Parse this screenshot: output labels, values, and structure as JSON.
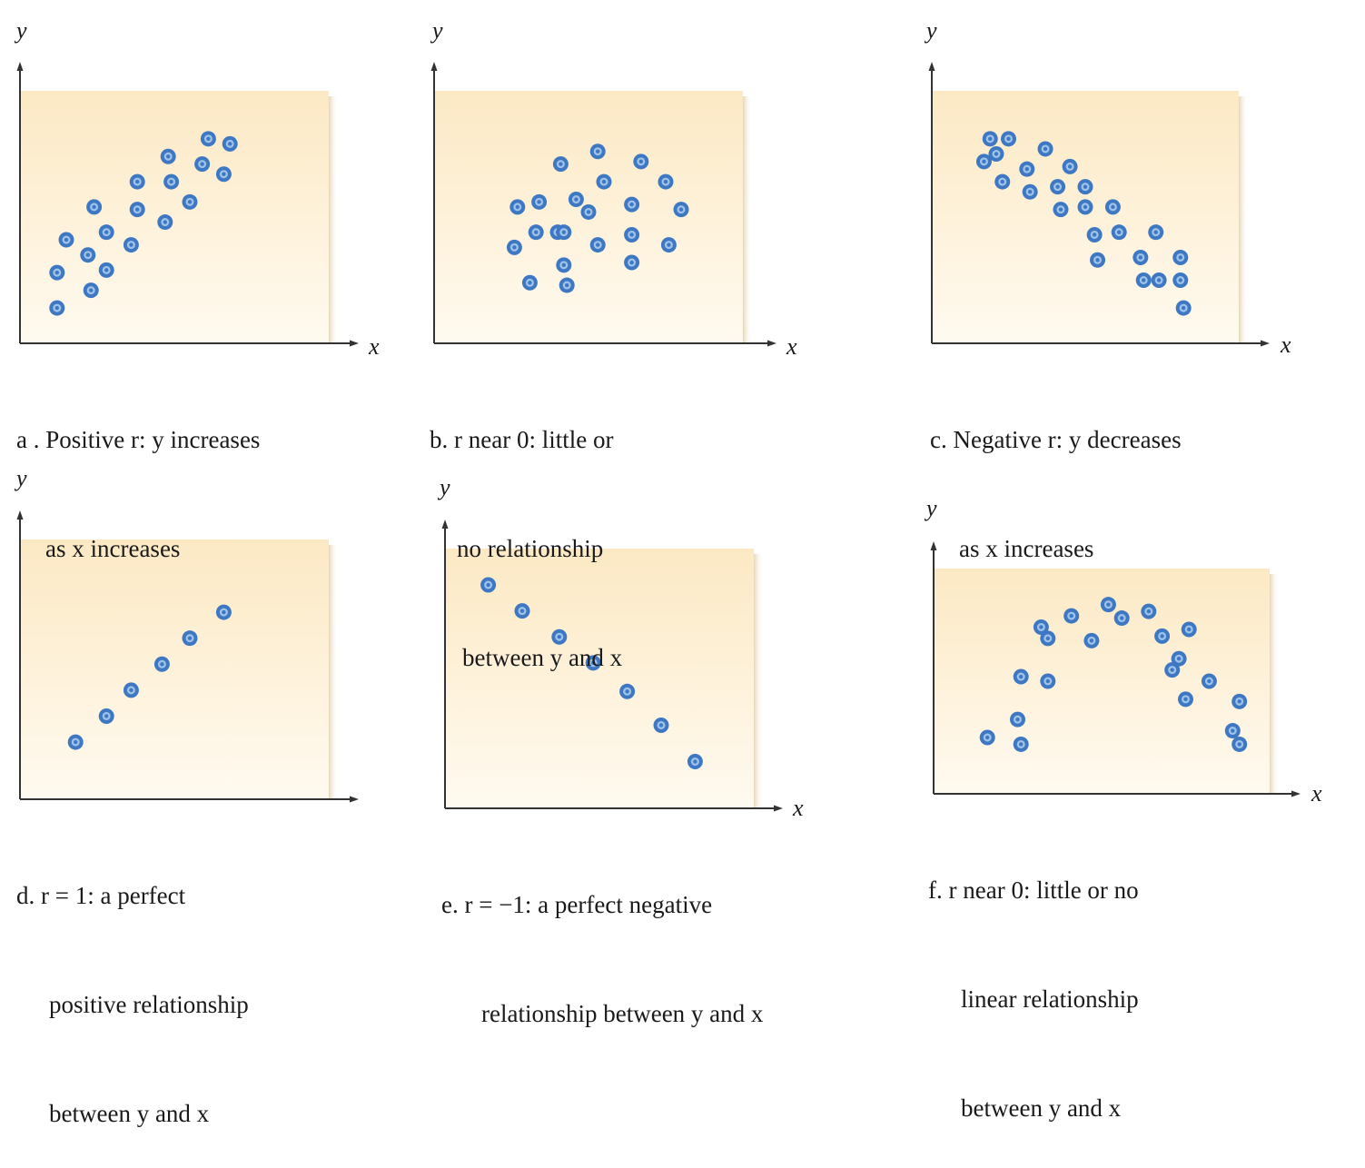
{
  "colors": {
    "panel_top": "#fce9c4",
    "panel_bottom": "#fffaf0",
    "point_fill": "#3f78c2",
    "point_ring": "#9ec3ea",
    "axis": "#333333"
  },
  "chart_data": [
    {
      "type": "scatter",
      "id": "a",
      "xlabel": "x",
      "ylabel": "y",
      "caption": [
        "a . Positive r: y increases",
        "as x increases"
      ],
      "points": [
        [
          0.12,
          0.14
        ],
        [
          0.12,
          0.28
        ],
        [
          0.15,
          0.41
        ],
        [
          0.22,
          0.35
        ],
        [
          0.23,
          0.21
        ],
        [
          0.24,
          0.54
        ],
        [
          0.28,
          0.29
        ],
        [
          0.28,
          0.44
        ],
        [
          0.36,
          0.39
        ],
        [
          0.38,
          0.64
        ],
        [
          0.38,
          0.53
        ],
        [
          0.47,
          0.48
        ],
        [
          0.48,
          0.74
        ],
        [
          0.49,
          0.64
        ],
        [
          0.55,
          0.56
        ],
        [
          0.59,
          0.71
        ],
        [
          0.61,
          0.81
        ],
        [
          0.66,
          0.67
        ],
        [
          0.68,
          0.79
        ]
      ]
    },
    {
      "type": "scatter",
      "id": "b",
      "xlabel": "x",
      "ylabel": "y",
      "caption": [
        "b. r near 0: little or",
        "no relationship",
        "between y and x"
      ],
      "points": [
        [
          0.26,
          0.38
        ],
        [
          0.27,
          0.54
        ],
        [
          0.31,
          0.24
        ],
        [
          0.33,
          0.44
        ],
        [
          0.34,
          0.56
        ],
        [
          0.4,
          0.44
        ],
        [
          0.41,
          0.71
        ],
        [
          0.42,
          0.31
        ],
        [
          0.42,
          0.44
        ],
        [
          0.43,
          0.23
        ],
        [
          0.46,
          0.57
        ],
        [
          0.5,
          0.52
        ],
        [
          0.53,
          0.76
        ],
        [
          0.53,
          0.39
        ],
        [
          0.55,
          0.64
        ],
        [
          0.64,
          0.32
        ],
        [
          0.64,
          0.55
        ],
        [
          0.64,
          0.43
        ],
        [
          0.67,
          0.72
        ],
        [
          0.75,
          0.64
        ],
        [
          0.76,
          0.39
        ],
        [
          0.8,
          0.53
        ]
      ]
    },
    {
      "type": "scatter",
      "id": "c",
      "xlabel": "x",
      "ylabel": "y",
      "caption": [
        "c. Negative r: y decreases",
        "as x increases"
      ],
      "points": [
        [
          0.17,
          0.72
        ],
        [
          0.19,
          0.81
        ],
        [
          0.21,
          0.75
        ],
        [
          0.23,
          0.64
        ],
        [
          0.25,
          0.81
        ],
        [
          0.31,
          0.69
        ],
        [
          0.32,
          0.6
        ],
        [
          0.37,
          0.77
        ],
        [
          0.41,
          0.62
        ],
        [
          0.42,
          0.53
        ],
        [
          0.45,
          0.7
        ],
        [
          0.5,
          0.62
        ],
        [
          0.5,
          0.54
        ],
        [
          0.53,
          0.43
        ],
        [
          0.54,
          0.33
        ],
        [
          0.59,
          0.54
        ],
        [
          0.61,
          0.44
        ],
        [
          0.68,
          0.34
        ],
        [
          0.69,
          0.25
        ],
        [
          0.73,
          0.44
        ],
        [
          0.74,
          0.25
        ],
        [
          0.81,
          0.34
        ],
        [
          0.81,
          0.25
        ],
        [
          0.82,
          0.14
        ]
      ]
    },
    {
      "type": "scatter",
      "id": "d",
      "xlabel": "",
      "ylabel": "y",
      "caption": [
        "d. r = 1: a perfect",
        "positive relationship",
        "between y and x"
      ],
      "points": [
        [
          0.18,
          0.22
        ],
        [
          0.28,
          0.32
        ],
        [
          0.36,
          0.42
        ],
        [
          0.46,
          0.52
        ],
        [
          0.55,
          0.62
        ],
        [
          0.66,
          0.72
        ]
      ]
    },
    {
      "type": "scatter",
      "id": "e",
      "xlabel": "x",
      "ylabel": "y",
      "caption": [
        "e. r = −1: a perfect negative",
        "relationship between y and x"
      ],
      "points": [
        [
          0.14,
          0.86
        ],
        [
          0.25,
          0.76
        ],
        [
          0.37,
          0.66
        ],
        [
          0.48,
          0.56
        ],
        [
          0.59,
          0.45
        ],
        [
          0.7,
          0.32
        ],
        [
          0.81,
          0.18
        ]
      ]
    },
    {
      "type": "scatter",
      "id": "f",
      "xlabel": "x",
      "ylabel": "y",
      "caption": [
        "f. r near 0: little or no",
        "linear relationship",
        "between y and x"
      ],
      "points": [
        [
          0.16,
          0.25
        ],
        [
          0.25,
          0.33
        ],
        [
          0.26,
          0.22
        ],
        [
          0.26,
          0.52
        ],
        [
          0.32,
          0.74
        ],
        [
          0.34,
          0.69
        ],
        [
          0.34,
          0.5
        ],
        [
          0.41,
          0.79
        ],
        [
          0.47,
          0.68
        ],
        [
          0.52,
          0.84
        ],
        [
          0.56,
          0.78
        ],
        [
          0.64,
          0.81
        ],
        [
          0.68,
          0.7
        ],
        [
          0.71,
          0.55
        ],
        [
          0.73,
          0.6
        ],
        [
          0.75,
          0.42
        ],
        [
          0.76,
          0.73
        ],
        [
          0.82,
          0.5
        ],
        [
          0.89,
          0.28
        ],
        [
          0.91,
          0.41
        ],
        [
          0.91,
          0.22
        ]
      ]
    }
  ]
}
